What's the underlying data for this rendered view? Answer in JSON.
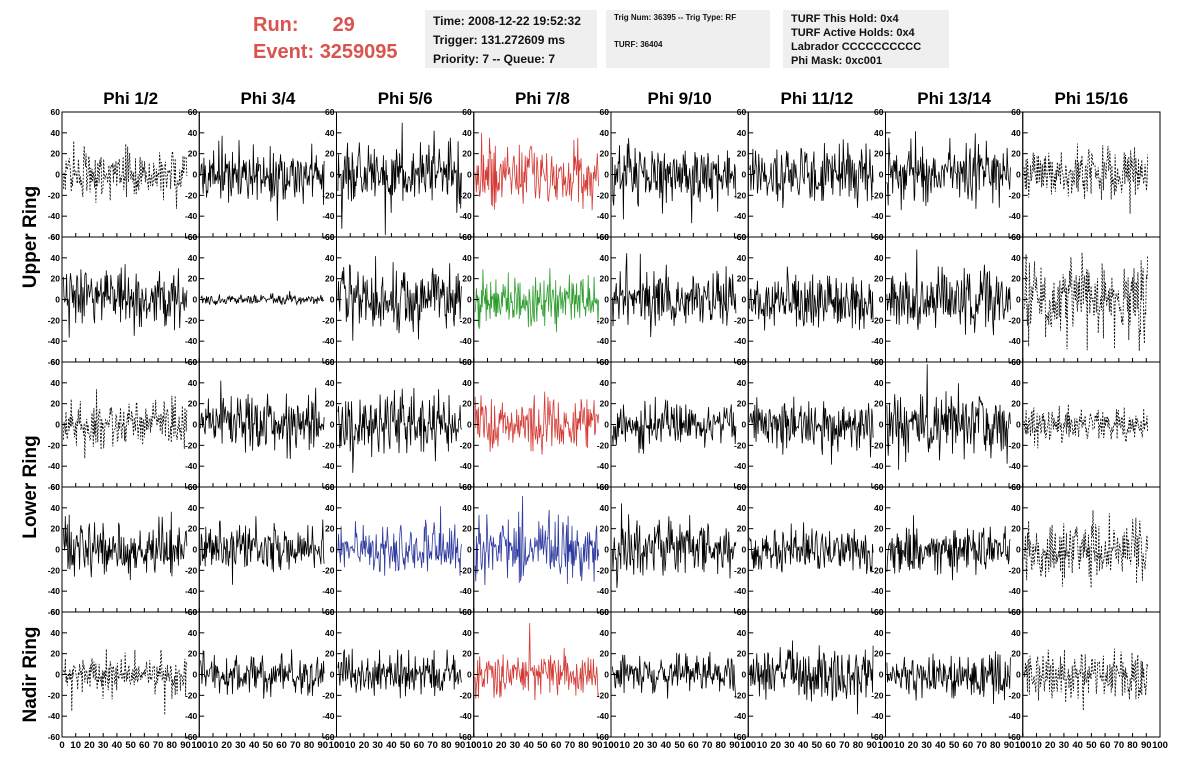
{
  "header": {
    "run_label": "Run:",
    "run_value": "29",
    "event_label": "Event:",
    "event_value": "3259095"
  },
  "info_box_1": {
    "time": "Time: 2008-12-22 19:52:32",
    "trigger": "Trigger: 131.272609 ms",
    "priority": "Priority: 7 -- Queue: 7"
  },
  "info_box_2": {
    "trig": "Trig Num: 36395 -- Trig Type: RF",
    "turf": "TURF: 36404"
  },
  "info_box_3": {
    "this_hold": "TURF This Hold: 0x4",
    "active_holds": "TURF Active Holds: 0x4",
    "labrador": "Labrador CCCCCCCCCC",
    "phi_mask": "Phi Mask: 0xc001"
  },
  "chart_data": {
    "type": "line",
    "columns": [
      "Phi 1/2",
      "Phi 3/4",
      "Phi 5/6",
      "Phi 7/8",
      "Phi 9/10",
      "Phi 11/12",
      "Phi 13/14",
      "Phi 15/16"
    ],
    "ring_labels": [
      {
        "label": "Upper Ring",
        "rows": [
          0,
          1
        ]
      },
      {
        "label": "Lower Ring",
        "rows": [
          2,
          3
        ]
      },
      {
        "label": "Nadir Ring",
        "rows": [
          4
        ]
      }
    ],
    "xlim": [
      0,
      100
    ],
    "ylim": [
      -60,
      60
    ],
    "x_ticks": [
      0,
      10,
      20,
      30,
      40,
      50,
      60,
      70,
      80,
      90,
      100
    ],
    "y_ticks": [
      -60,
      -40,
      -20,
      0,
      20,
      40,
      60
    ],
    "x_tick_labels": [
      "0",
      "10",
      "20",
      "30",
      "40",
      "50",
      "60",
      "70",
      "80",
      "90",
      "100"
    ],
    "y_tick_labels": [
      "-60",
      "-40",
      "-20",
      "0",
      "20",
      "40",
      "60"
    ],
    "colors": {
      "red": "#d43b35",
      "green": "#2e9e2e",
      "blue": "#2e3a9e",
      "black": "#000000"
    },
    "panels": [
      [
        {
          "style": "dashed",
          "amp": 14,
          "color": "black"
        },
        {
          "style": "solid",
          "amp": 16,
          "color": "black"
        },
        {
          "style": "solid",
          "amp": 20,
          "color": "black"
        },
        {
          "style": "solid",
          "amp": 18,
          "color": "red"
        },
        {
          "style": "solid",
          "amp": 17,
          "color": "black"
        },
        {
          "style": "solid",
          "amp": 16,
          "color": "black"
        },
        {
          "style": "solid",
          "amp": 17,
          "color": "black"
        },
        {
          "style": "dashed",
          "amp": 15,
          "color": "black"
        }
      ],
      [
        {
          "style": "solid",
          "amp": 16,
          "color": "black"
        },
        {
          "style": "solid",
          "amp": 3,
          "color": "black"
        },
        {
          "style": "solid",
          "amp": 18,
          "color": "black"
        },
        {
          "style": "solid",
          "amp": 16,
          "color": "green"
        },
        {
          "style": "solid",
          "amp": 18,
          "color": "black"
        },
        {
          "style": "solid",
          "amp": 15,
          "color": "black"
        },
        {
          "style": "solid",
          "amp": 17,
          "color": "black"
        },
        {
          "style": "dashed",
          "amp": 22,
          "color": "black"
        }
      ],
      [
        {
          "style": "dashed",
          "amp": 13,
          "color": "black"
        },
        {
          "style": "solid",
          "amp": 16,
          "color": "black"
        },
        {
          "style": "solid",
          "amp": 18,
          "color": "black"
        },
        {
          "style": "solid",
          "amp": 17,
          "color": "red"
        },
        {
          "style": "solid",
          "amp": 14,
          "color": "black"
        },
        {
          "style": "solid",
          "amp": 15,
          "color": "black"
        },
        {
          "style": "solid",
          "amp": 18,
          "color": "black"
        },
        {
          "style": "dashed",
          "amp": 10,
          "color": "black"
        }
      ],
      [
        {
          "style": "solid",
          "amp": 17,
          "color": "black"
        },
        {
          "style": "solid",
          "amp": 14,
          "color": "black"
        },
        {
          "style": "solid",
          "amp": 15,
          "color": "blue"
        },
        {
          "style": "solid",
          "amp": 17,
          "color": "blue"
        },
        {
          "style": "solid",
          "amp": 15,
          "color": "black"
        },
        {
          "style": "solid",
          "amp": 13,
          "color": "black"
        },
        {
          "style": "solid",
          "amp": 15,
          "color": "black"
        },
        {
          "style": "dashed",
          "amp": 17,
          "color": "black"
        }
      ],
      [
        {
          "style": "dashed",
          "amp": 12,
          "color": "black"
        },
        {
          "style": "solid",
          "amp": 11,
          "color": "black"
        },
        {
          "style": "solid",
          "amp": 12,
          "color": "black"
        },
        {
          "style": "solid",
          "amp": 13,
          "color": "red"
        },
        {
          "style": "solid",
          "amp": 11,
          "color": "black"
        },
        {
          "style": "solid",
          "amp": 14,
          "color": "black"
        },
        {
          "style": "solid",
          "amp": 13,
          "color": "black"
        },
        {
          "style": "dashed",
          "amp": 14,
          "color": "black"
        }
      ]
    ]
  }
}
